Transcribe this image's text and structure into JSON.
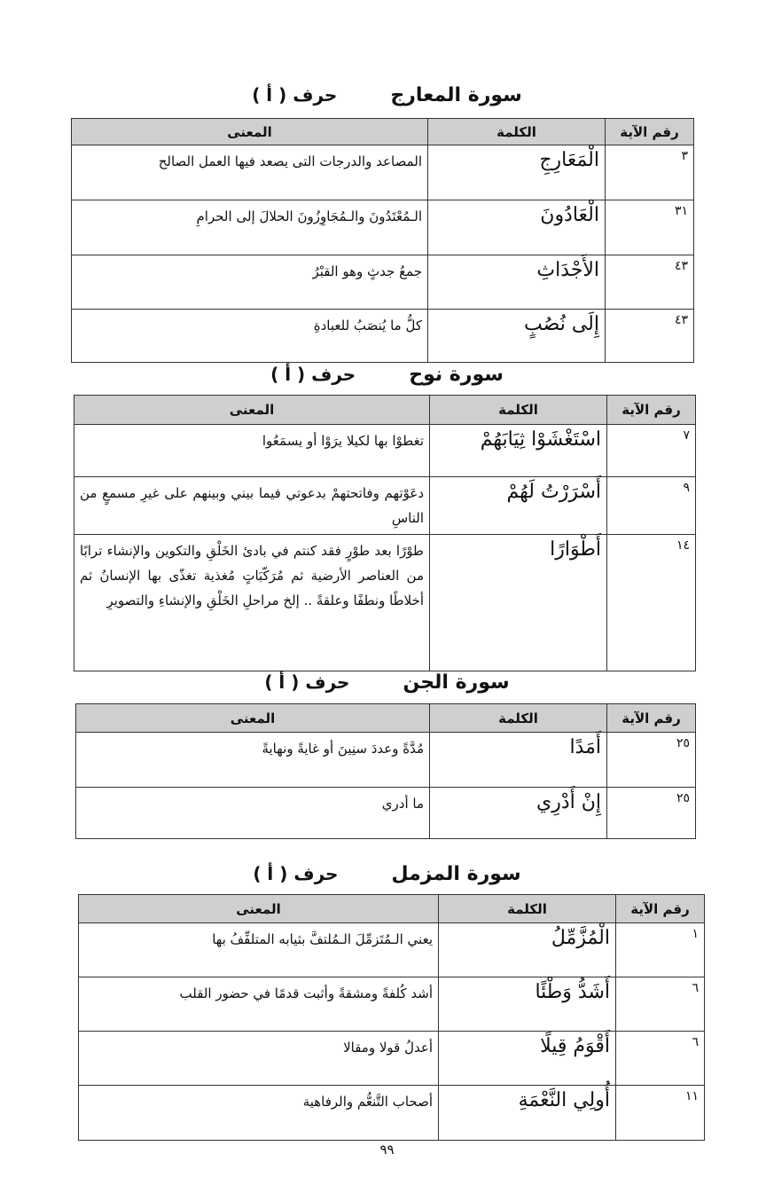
{
  "sections": [
    {
      "surah": "سورة المعارج",
      "harf": "حرف ( أ )",
      "headers": [
        "رقم الآية",
        "الكلمة",
        "المعنى"
      ],
      "rows": [
        [
          "٣",
          "الْمَعَارِجِ",
          "المصاعد والدرجات التى يصعد فيها العمل الصالح"
        ],
        [
          "٣١",
          "الْعَادُونَ",
          "الـمُعْتَدُونَ والـمُجَاوِزُونَ الحلالَ إلى الحرامِ"
        ],
        [
          "٤٣",
          "الأَجْدَاثِ",
          "جمعُ جدثٍ وهو القبْرُ"
        ],
        [
          "٤٣",
          "إِلَى نُصُبٍ",
          "كلُّ ما يُنصَبُ للعبادةِ"
        ]
      ]
    },
    {
      "surah": "سورة نوح",
      "harf": "حرف ( أ )",
      "headers": [
        "رقم الآية",
        "الكلمة",
        "المعنى"
      ],
      "rows": [
        [
          "٧",
          "اسْتَغْشَوْا ثِيَابَهُمْ",
          "تغطوْا بها لكيلا يرَوْا أو يسمَعُوا"
        ],
        [
          "٩",
          "أَسْرَرْتُ لَهُمْ",
          "دعَوْتهم وفاتحتهمْ بدعوتي فيما بيني وبينهم على غيرِ مسمعٍ من الناسِ"
        ],
        [
          "١٤",
          "أَطْوَارًا",
          "طوْرًا بعد طوْرٍ فقد كنتم في بادئ الخَلْقِ والتكوين والإنشاء ترابًا من العناصر الأرضية ثم مُرَكّبَاتٍ مُغذية تغذّى بها الإنسانُ ثم أخلاطًا ونطفًا وعلقةً .. إلخ مراحلِ الخَلْقِ والإنشاءِ والتصويرِ"
        ]
      ]
    },
    {
      "surah": "سورة الجن",
      "harf": "حرف ( أ )",
      "headers": [
        "رقم الآية",
        "الكلمة",
        "المعنى"
      ],
      "rows": [
        [
          "٢٥",
          "أَمَدًا",
          "مُدَّةً وعددَ سنِينَ أو غايةً ونهايةً"
        ],
        [
          "٢٥",
          "إِنْ أَدْرِي",
          "ما أدري"
        ]
      ]
    },
    {
      "surah": "سورة المزمل",
      "harf": "حرف ( أ )",
      "headers": [
        "رقم الآية",
        "الكلمة",
        "المعنى"
      ],
      "rows": [
        [
          "١",
          "الْمُزَّمِّلُ",
          "يعني الـمُتَزمِّلَ الـمُلتفَّ بثيابه المتلفِّفُ بها"
        ],
        [
          "٦",
          "أَشَدُّ وَطْئًا",
          "أشد كُلفةً ومشقةً وأثبت قدمًا في حضور القلب"
        ],
        [
          "٦",
          "أَقْوَمُ قِيلًا",
          "أعدلُ قولا ومقالا"
        ],
        [
          "١١",
          "أُولِي النَّعْمَةِ",
          "أصحاب التَّنعُّم والرفاهية"
        ]
      ]
    }
  ],
  "page_number": "٩٩"
}
